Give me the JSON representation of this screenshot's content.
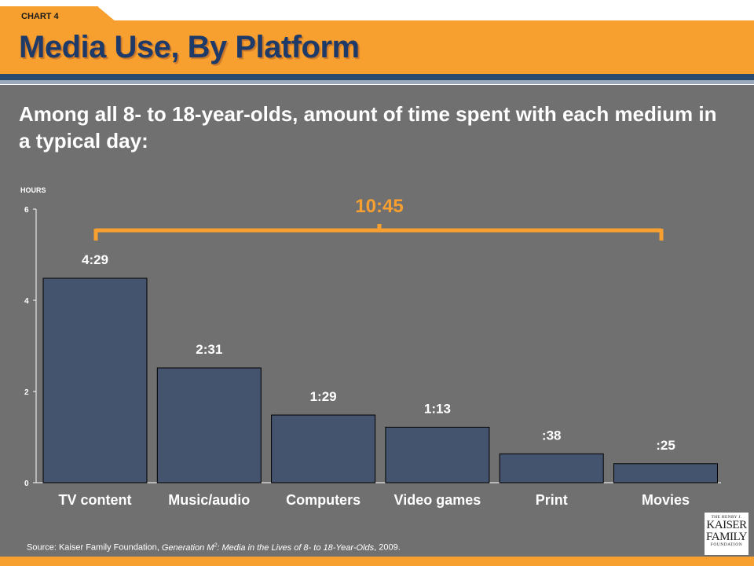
{
  "header": {
    "chart_label": "CHART 4",
    "title": "Media Use, By Platform"
  },
  "subtitle": "Among all 8- to 18-year-olds, amount of time spent with each medium in a typical day:",
  "source": {
    "prefix": "Source: Kaiser Family Foundation, ",
    "title_part1": "Generation M",
    "title_sup": "2",
    "title_part2": ": Media in the Lives of 8- to 18-Year-Olds",
    "suffix": ", 2009."
  },
  "logo": {
    "line1": "THE HENRY J.",
    "line2": "KAISER",
    "line3": "FAMILY",
    "line4": "FOUNDATION"
  },
  "colors": {
    "bar": "#44546f",
    "accent": "#f7a030",
    "background": "#707070",
    "title": "#1e3a68"
  },
  "chart_data": {
    "type": "bar",
    "ylabel": "HOURS",
    "ylim": [
      0,
      6
    ],
    "yticks": [
      0,
      2,
      4,
      6
    ],
    "categories": [
      "TV content",
      "Music/audio",
      "Computers",
      "Video games",
      "Print",
      "Movies"
    ],
    "values": [
      4.483,
      2.517,
      1.483,
      1.217,
      0.633,
      0.417
    ],
    "data_labels": [
      "4:29",
      "2:31",
      "1:29",
      "1:13",
      ":38",
      ":25"
    ],
    "total_label": "10:45",
    "grid": false,
    "legend": "none"
  }
}
